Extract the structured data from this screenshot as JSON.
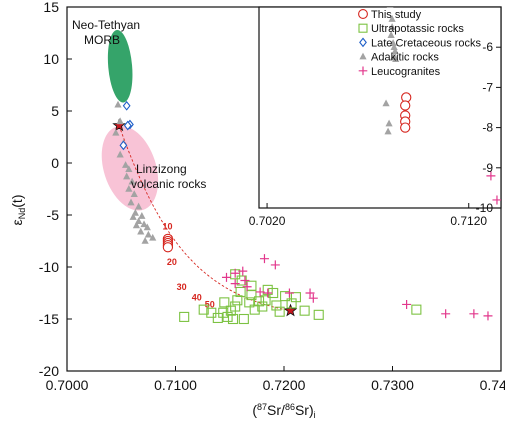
{
  "chart_data": {
    "type": "scatter",
    "xlabel": "(87Sr/86Sr)i",
    "ylabel": "εNd(t)",
    "xlim": [
      0.7,
      0.74
    ],
    "ylim": [
      -20,
      15
    ],
    "xticks": [
      "0.7000",
      "0.7100",
      "0.7200",
      "0.7300",
      "0.7400"
    ],
    "yticks": [
      "15",
      "10",
      "5",
      "0",
      "-5",
      "-10",
      "-15",
      "-20"
    ],
    "regions": [
      {
        "label": "Neo-Tethyan MORB",
        "color": "#1f9a5a",
        "cx": 0.7049,
        "cy": 9.3,
        "rx": 0.0011,
        "ry": 3.5
      },
      {
        "label": "Linzizong volcanic rocks",
        "color": "#f7b8cf",
        "cx": 0.7058,
        "cy": -0.5,
        "rx": 0.0024,
        "ry": 4.2
      }
    ],
    "series": [
      {
        "name": "This study",
        "marker": "circle",
        "color": "#d6261f",
        "points": [
          [
            0.7093,
            -7.3
          ],
          [
            0.7093,
            -7.5
          ],
          [
            0.7093,
            -7.7
          ],
          [
            0.7093,
            -7.9
          ],
          [
            0.7093,
            -8.1
          ]
        ]
      },
      {
        "name": "Ultrapotassic rocks",
        "marker": "square",
        "color": "#7cc242",
        "points": [
          [
            0.7108,
            -14.8
          ],
          [
            0.7126,
            -14.1
          ],
          [
            0.7133,
            -14.4
          ],
          [
            0.7139,
            -14.9
          ],
          [
            0.7144,
            -14.4
          ],
          [
            0.7148,
            -14.8
          ],
          [
            0.7151,
            -14.2
          ],
          [
            0.7155,
            -13.8
          ],
          [
            0.7157,
            -13.2
          ],
          [
            0.716,
            -12.4
          ],
          [
            0.7155,
            -10.7
          ],
          [
            0.7161,
            -11.3
          ],
          [
            0.7168,
            -13.4
          ],
          [
            0.717,
            -12.7
          ],
          [
            0.7173,
            -14.1
          ],
          [
            0.7177,
            -13.3
          ],
          [
            0.718,
            -13.8
          ],
          [
            0.7183,
            -13.2
          ],
          [
            0.719,
            -12.5
          ],
          [
            0.7193,
            -13.7
          ],
          [
            0.7196,
            -14.3
          ],
          [
            0.7201,
            -12.8
          ],
          [
            0.7207,
            -13.5
          ],
          [
            0.7211,
            -12.9
          ],
          [
            0.7219,
            -14.2
          ],
          [
            0.7232,
            -14.6
          ],
          [
            0.7322,
            -14.1
          ],
          [
            0.7163,
            -15.0
          ],
          [
            0.7153,
            -15.0
          ],
          [
            0.717,
            -11.8
          ],
          [
            0.7145,
            -13.4
          ],
          [
            0.7185,
            -12.2
          ]
        ]
      },
      {
        "name": "Late Cretaceous rocks",
        "marker": "diamond",
        "color": "#1f5fc8",
        "points": [
          [
            0.7055,
            5.5
          ],
          [
            0.7058,
            3.7
          ],
          [
            0.7056,
            3.6
          ],
          [
            0.7052,
            1.7
          ]
        ]
      },
      {
        "name": "Adakitic rocks",
        "marker": "triangle",
        "color": "#a3a3a3",
        "points": [
          [
            0.7047,
            5.6
          ],
          [
            0.7049,
            4.0
          ],
          [
            0.7045,
            2.9
          ],
          [
            0.7052,
            1.9
          ],
          [
            0.7049,
            0.8
          ],
          [
            0.7054,
            -0.2
          ],
          [
            0.7057,
            -0.6
          ],
          [
            0.7055,
            -1.3
          ],
          [
            0.706,
            -1.8
          ],
          [
            0.7057,
            -2.5
          ],
          [
            0.7062,
            -3.0
          ],
          [
            0.7059,
            -3.8
          ],
          [
            0.7066,
            -4.2
          ],
          [
            0.7063,
            -4.8
          ],
          [
            0.7069,
            -5.1
          ],
          [
            0.7066,
            -5.6
          ],
          [
            0.7071,
            -5.9
          ],
          [
            0.7074,
            -6.2
          ],
          [
            0.7068,
            -6.6
          ],
          [
            0.7075,
            -6.9
          ],
          [
            0.7079,
            -7.2
          ],
          [
            0.7072,
            -7.5
          ],
          [
            0.7064,
            -6.0
          ],
          [
            0.7061,
            -5.2
          ]
        ]
      },
      {
        "name": "Leucogranites",
        "marker": "plus",
        "color": "#e2378c",
        "points": [
          [
            0.7147,
            -11.0
          ],
          [
            0.7155,
            -11.6
          ],
          [
            0.7162,
            -10.4
          ],
          [
            0.7164,
            -11.3
          ],
          [
            0.7166,
            -11.9
          ],
          [
            0.7182,
            -9.2
          ],
          [
            0.7185,
            -12.5
          ],
          [
            0.7192,
            -9.8
          ],
          [
            0.7205,
            -12.5
          ],
          [
            0.7224,
            -12.5
          ],
          [
            0.7227,
            -13.0
          ],
          [
            0.7313,
            -13.6
          ],
          [
            0.7349,
            -14.5
          ],
          [
            0.7375,
            -14.5
          ],
          [
            0.7388,
            -14.7
          ],
          [
            0.7178,
            -12.4
          ],
          [
            0.7155,
            -10.6
          ]
        ]
      }
    ],
    "endmembers": [
      [
        0.7048,
        3.6
      ],
      [
        0.7206,
        -14.2
      ]
    ],
    "mixing_curve_labels": [
      "10",
      "20",
      "30",
      "40",
      "50"
    ],
    "legend_position": "top-right"
  },
  "inset": {
    "xlim": [
      0.7016,
      0.7136
    ],
    "ylim": [
      -10,
      -5
    ],
    "xticks": [
      "0.7020",
      "0.7120"
    ],
    "yticks": [
      "-6",
      "-7",
      "-8",
      "-9",
      "-10"
    ],
    "legend": [
      {
        "label": "This study",
        "marker": "circle",
        "color": "#d6261f"
      },
      {
        "label": "Ultrapotassic rocks",
        "marker": "square",
        "color": "#7cc242"
      },
      {
        "label": "Late Cretaceous rocks",
        "marker": "diamond",
        "color": "#1f5fc8"
      },
      {
        "label": "Adakitic rocks",
        "marker": "triangle",
        "color": "#a3a3a3"
      },
      {
        "label": "Leucogranites",
        "marker": "plus",
        "color": "#e2378c"
      }
    ],
    "series": [
      {
        "name": "Adakitic rocks",
        "marker": "triangle",
        "color": "#a3a3a3",
        "points": [
          [
            0.7077,
            -4.9
          ],
          [
            0.7081,
            -4.95
          ],
          [
            0.7082,
            -5.5
          ],
          [
            0.70815,
            -5.7
          ],
          [
            0.70825,
            -5.9
          ],
          [
            0.7083,
            -6.0
          ],
          [
            0.70835,
            -6.1
          ],
          [
            0.70828,
            -6.25
          ],
          [
            0.70838,
            -6.3
          ],
          [
            0.7082,
            -5.3
          ],
          [
            0.7079,
            -7.4
          ],
          [
            0.708,
            -8.1
          ],
          [
            0.70805,
            -7.9
          ]
        ]
      },
      {
        "name": "This study",
        "marker": "circle",
        "color": "#d6261f",
        "points": [
          [
            0.7089,
            -7.25
          ],
          [
            0.70885,
            -7.45
          ],
          [
            0.70885,
            -7.7
          ],
          [
            0.70885,
            -7.85
          ],
          [
            0.70885,
            -8.0
          ]
        ]
      },
      {
        "name": "Leucogranites",
        "marker": "plus",
        "color": "#e2378c",
        "points": [
          [
            0.7131,
            -9.2
          ],
          [
            0.7134,
            -9.8
          ]
        ]
      }
    ]
  },
  "annotations": {
    "morb_label_line1": "Neo-Tethyan",
    "morb_label_line2": "MORB",
    "linzizong_line1": "Linzizong",
    "linzizong_line2": "volcanic rocks",
    "ylabel_main": "ε",
    "ylabel_sub": "Nd",
    "ylabel_tail": "(t)",
    "xlabel_open": "(",
    "xlabel_sup1": "87",
    "xlabel_mid": "Sr/",
    "xlabel_sup2": "86",
    "xlabel_close": "Sr)",
    "xlabel_sub": "i"
  }
}
